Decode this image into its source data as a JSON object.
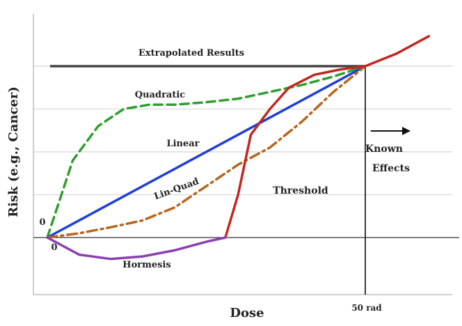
{
  "chart_data": {
    "type": "line",
    "title": "",
    "xlabel": "Dose",
    "ylabel": "Risk (e.g., Cancer)",
    "x_tick_label": "50 rad",
    "x_origin_label": "0",
    "y_origin_label": "0",
    "extrapolated_label": "Extrapolated Results",
    "known_effects_label": "Known Effects",
    "known_effects_lines": [
      "Known",
      "Effects"
    ],
    "grid": true,
    "xlim": [
      0,
      60
    ],
    "ylim": [
      -0.6,
      2.3
    ],
    "ref_x": 50,
    "ref_y": 2.0,
    "series": [
      {
        "name": "Quadratic",
        "color": "#2e9e2e",
        "dash": "dashed",
        "x": [
          0,
          4,
          8,
          12,
          16,
          20,
          25,
          30,
          35,
          40,
          45,
          50
        ],
        "y": [
          0,
          0.9,
          1.3,
          1.5,
          1.55,
          1.55,
          1.58,
          1.62,
          1.7,
          1.78,
          1.88,
          2.0
        ]
      },
      {
        "name": "Linear",
        "color": "#1f3fd6",
        "dash": "solid",
        "x": [
          0,
          50
        ],
        "y": [
          0,
          2.0
        ]
      },
      {
        "name": "Lin-Quad",
        "color": "#b8651b",
        "dash": "dashdot",
        "x": [
          0,
          5,
          10,
          15,
          20,
          25,
          30,
          35,
          40,
          45,
          50
        ],
        "y": [
          0,
          0.05,
          0.12,
          0.2,
          0.35,
          0.6,
          0.85,
          1.05,
          1.35,
          1.7,
          2.0
        ]
      },
      {
        "name": "Threshold",
        "color": "#c0281f",
        "dash": "solid",
        "x": [
          28,
          30,
          32,
          35,
          38,
          42,
          46,
          50,
          55,
          60
        ],
        "y": [
          0,
          0.5,
          1.2,
          1.5,
          1.75,
          1.9,
          1.96,
          2.0,
          2.15,
          2.35
        ]
      },
      {
        "name": "Hormesis",
        "color": "#8a3fb0",
        "dash": "solid",
        "x": [
          0,
          5,
          10,
          15,
          20,
          25,
          28
        ],
        "y": [
          0,
          -0.2,
          -0.25,
          -0.22,
          -0.15,
          -0.05,
          0
        ]
      }
    ]
  }
}
